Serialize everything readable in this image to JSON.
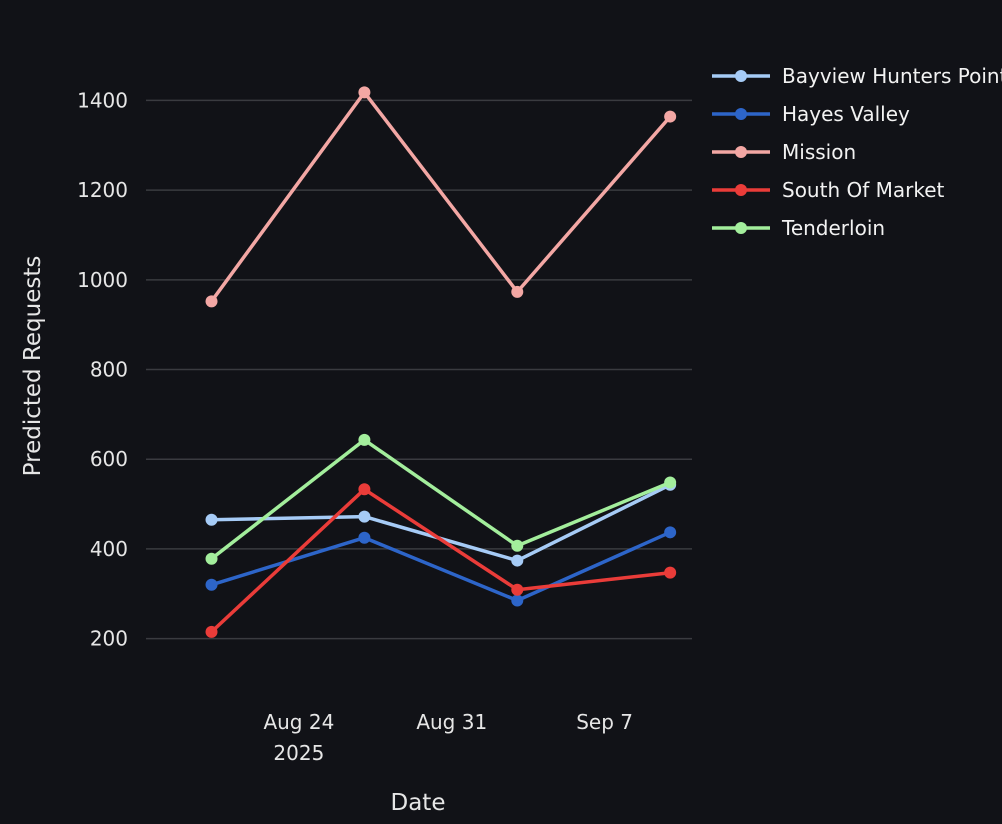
{
  "chart_data": {
    "type": "line",
    "xlabel": "Date",
    "ylabel": "Predicted Requests",
    "x": [
      "2025-08-20",
      "2025-08-27",
      "2025-09-03",
      "2025-09-10"
    ],
    "x_ticks": [
      {
        "date": "2025-08-24",
        "label": "Aug 24",
        "sublabel": "2025"
      },
      {
        "date": "2025-08-31",
        "label": "Aug 31",
        "sublabel": ""
      },
      {
        "date": "2025-09-07",
        "label": "Sep 7",
        "sublabel": ""
      }
    ],
    "xlim": [
      "2025-08-17",
      "2025-09-11"
    ],
    "ylim": [
      130,
      1450
    ],
    "y_ticks": [
      200,
      400,
      600,
      800,
      1000,
      1200,
      1400
    ],
    "y_tick_labels": [
      "200",
      "400",
      "600",
      "800",
      "1000",
      "1200",
      "1400"
    ],
    "grid": true,
    "legend_position": "top-right",
    "series": [
      {
        "name": "Bayview Hunters Point",
        "color": "#a6cbf6",
        "values": [
          465,
          472,
          374,
          543
        ]
      },
      {
        "name": "Hayes Valley",
        "color": "#2d65c9",
        "values": [
          320,
          425,
          285,
          437
        ]
      },
      {
        "name": "Mission",
        "color": "#f3a7a4",
        "values": [
          952,
          1418,
          973,
          1364
        ]
      },
      {
        "name": "South Of Market",
        "color": "#ea3c39",
        "values": [
          215,
          533,
          309,
          347
        ]
      },
      {
        "name": "Tenderloin",
        "color": "#a3ee9c",
        "values": [
          378,
          643,
          407,
          548
        ]
      }
    ]
  }
}
